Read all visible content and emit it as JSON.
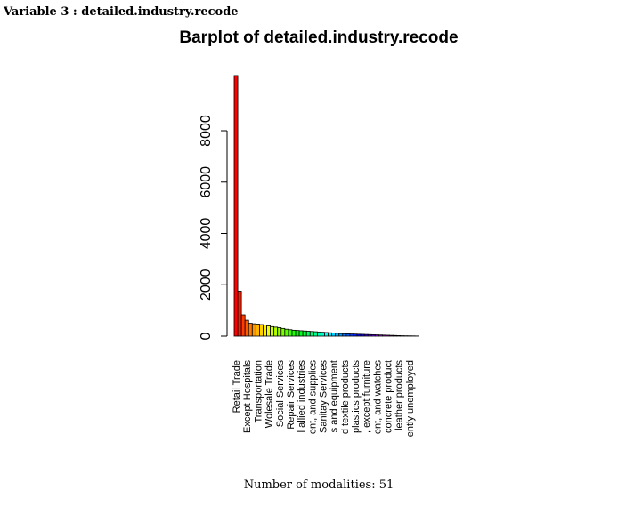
{
  "header": "Variable 3 : detailed.industry.recode",
  "footer": "Number of modalities: 51",
  "chart_data": {
    "type": "bar",
    "title": "Barplot of detailed.industry.recode",
    "palette": "rainbow",
    "categories": [
      "Retail Trade",
      null,
      null,
      "Except Hospitals",
      null,
      null,
      "Transportation",
      null,
      null,
      "Wolesale Trade",
      null,
      null,
      "Social Services",
      null,
      null,
      "Repair Services",
      null,
      null,
      "l allied industries",
      null,
      null,
      "ent, and supplies",
      null,
      null,
      "Sanitay Services",
      null,
      null,
      "s and equipment",
      null,
      null,
      "d textile products",
      null,
      null,
      "plastics products",
      null,
      null,
      ", except furniture",
      null,
      null,
      "ent, and watches",
      null,
      null,
      "concrete product",
      null,
      null,
      "leather products",
      null,
      null,
      "ently unemployed",
      null,
      null
    ],
    "values": [
      10150,
      1750,
      830,
      620,
      500,
      480,
      470,
      450,
      430,
      400,
      370,
      350,
      330,
      300,
      270,
      250,
      230,
      220,
      210,
      200,
      190,
      180,
      170,
      160,
      150,
      140,
      130,
      120,
      110,
      100,
      95,
      90,
      85,
      80,
      75,
      70,
      65,
      60,
      55,
      50,
      45,
      40,
      35,
      30,
      25,
      20,
      15,
      12,
      10,
      8,
      5
    ],
    "ylim": [
      0,
      10200
    ],
    "yticks": [
      0,
      2000,
      4000,
      6000,
      8000
    ]
  }
}
